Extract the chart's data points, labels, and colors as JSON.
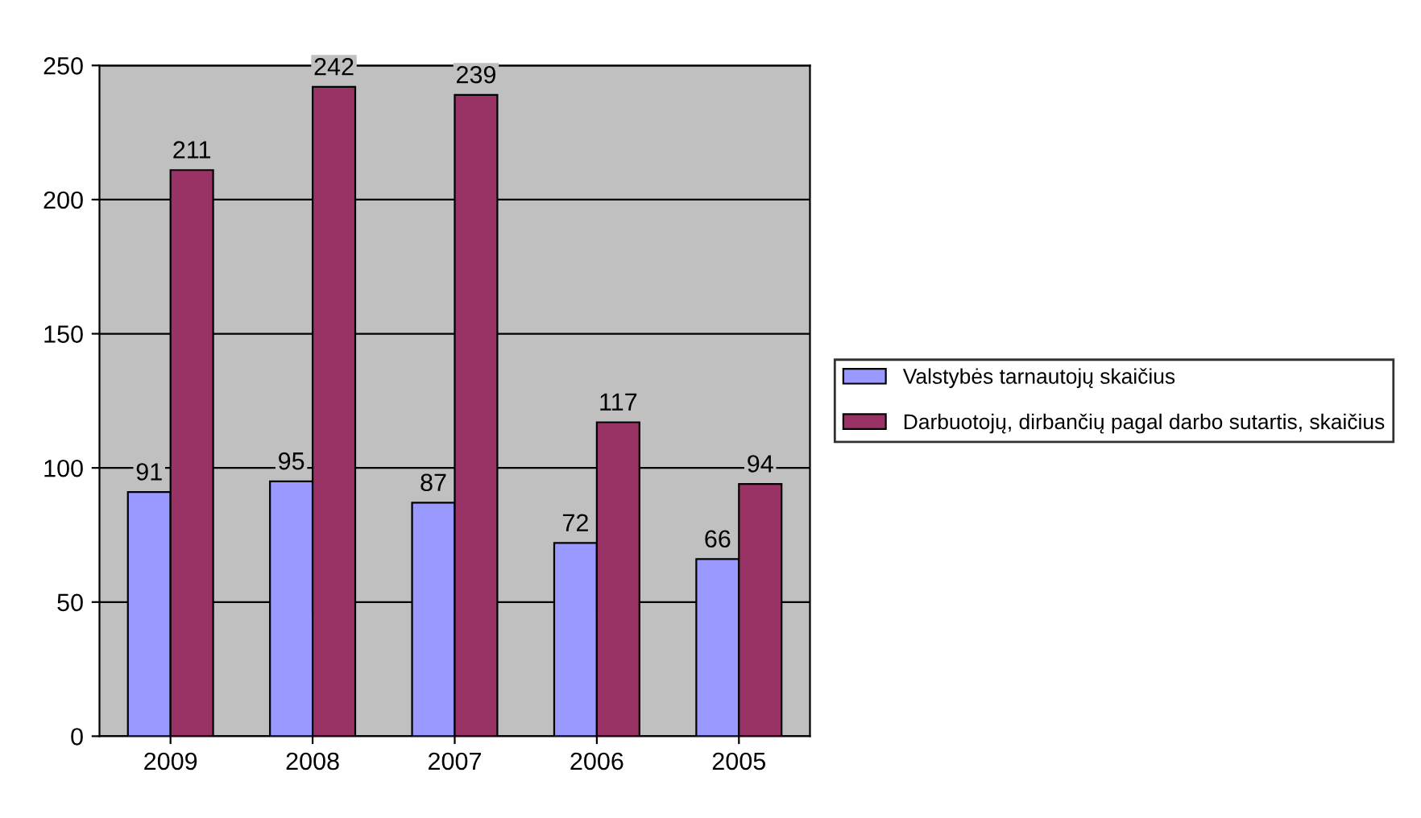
{
  "chart_data": {
    "type": "bar",
    "categories": [
      "2009",
      "2008",
      "2007",
      "2006",
      "2005"
    ],
    "series": [
      {
        "name": "Valstybės tarnautojų skaičius",
        "color": "#9999ff",
        "values": [
          91,
          95,
          87,
          72,
          66
        ]
      },
      {
        "name": "Darbuotojų, dirbančių pagal darbo sutartis, skaičius",
        "color": "#993366",
        "values": [
          211,
          242,
          239,
          117,
          94
        ]
      }
    ],
    "ylim": [
      0,
      250
    ],
    "yticks": [
      0,
      50,
      100,
      150,
      200,
      250
    ],
    "grid": "y",
    "legend": "right",
    "data_labels": true
  }
}
